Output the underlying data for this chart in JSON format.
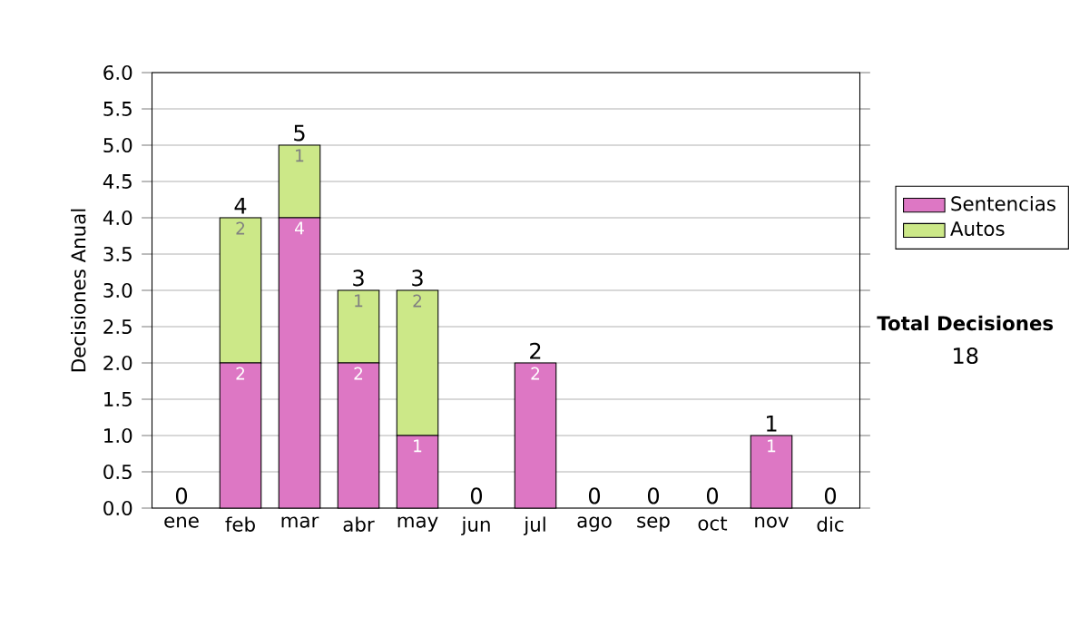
{
  "chart_data": {
    "type": "bar",
    "stacked": true,
    "ylabel": "Decisiones Anual",
    "categories": [
      "ene",
      "feb",
      "mar",
      "abr",
      "may",
      "jun",
      "jul",
      "ago",
      "sep",
      "oct",
      "nov",
      "dic"
    ],
    "series": [
      {
        "name": "Sentencias",
        "color": "#dd77c4",
        "values": [
          0,
          2,
          4,
          2,
          1,
          0,
          2,
          0,
          0,
          0,
          1,
          0
        ],
        "value_labels": [
          null,
          "2",
          "4",
          "2",
          "1",
          null,
          "2",
          null,
          null,
          null,
          "1",
          null
        ]
      },
      {
        "name": "Autos",
        "color": "#cce888",
        "values": [
          0,
          2,
          1,
          1,
          2,
          0,
          0,
          0,
          0,
          0,
          0,
          0
        ],
        "value_labels": [
          null,
          "2",
          "1",
          "1",
          "2",
          null,
          null,
          null,
          null,
          null,
          null,
          null
        ]
      }
    ],
    "totals": [
      "0",
      "4",
      "5",
      "3",
      "3",
      "0",
      "2",
      "0",
      "0",
      "0",
      "1",
      "0"
    ],
    "ylim": [
      0,
      6
    ],
    "yticks": [
      {
        "value": 0,
        "label": "0.0"
      },
      {
        "value": 0.5,
        "label": "0.5"
      },
      {
        "value": 1,
        "label": "1.0"
      },
      {
        "value": 1.5,
        "label": "1.5"
      },
      {
        "value": 2,
        "label": "2.0"
      },
      {
        "value": 2.5,
        "label": "2.5"
      },
      {
        "value": 3,
        "label": "3.0"
      },
      {
        "value": 3.5,
        "label": "3.5"
      },
      {
        "value": 4,
        "label": "4.0"
      },
      {
        "value": 4.5,
        "label": "4.5"
      },
      {
        "value": 5,
        "label": "5.0"
      },
      {
        "value": 5.5,
        "label": "5.5"
      },
      {
        "value": 6,
        "label": "6.0"
      }
    ],
    "grid": "y",
    "legend": "right",
    "annotations": [
      "Total Decisiones",
      "18"
    ]
  }
}
